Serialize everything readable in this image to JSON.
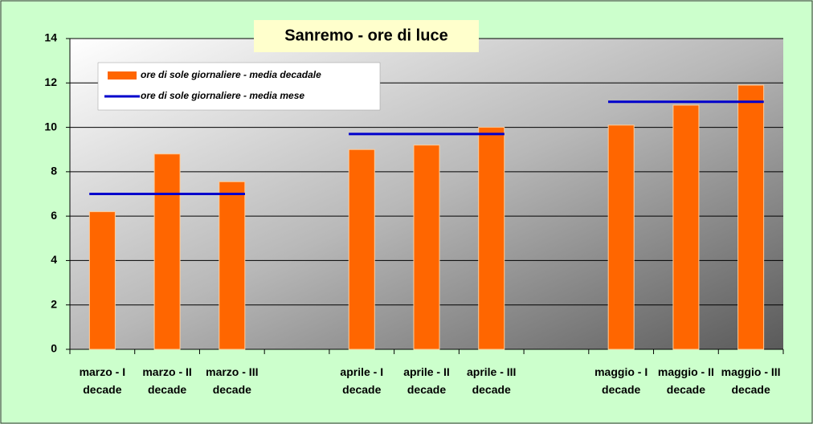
{
  "chart_data": {
    "type": "bar",
    "title": "Sanremo - ore di luce",
    "categories": [
      "marzo - I decade",
      "marzo - II decade",
      "marzo - III decade",
      null,
      "aprile - I decade",
      "aprile - II decade",
      "aprile - III decade",
      null,
      "maggio - I decade",
      "maggio - II decade",
      "maggio - III decade"
    ],
    "series": [
      {
        "name": "ore di sole giornaliere - media decadale",
        "color": "#ff6600",
        "type": "bar",
        "values": [
          6.2,
          8.8,
          7.55,
          null,
          9.0,
          9.2,
          10.0,
          null,
          10.1,
          11.0,
          11.9
        ]
      },
      {
        "name": "ore di sole giornaliere - media mese",
        "color": "#0000cc",
        "type": "line",
        "values": [
          7.0,
          7.0,
          7.0,
          null,
          9.7,
          9.7,
          9.7,
          null,
          11.15,
          11.15,
          11.15
        ]
      }
    ],
    "ylim": [
      0,
      14
    ],
    "yticks": [
      0,
      2,
      4,
      6,
      8,
      10,
      12,
      14
    ],
    "grid": true,
    "legend": "top-left"
  }
}
